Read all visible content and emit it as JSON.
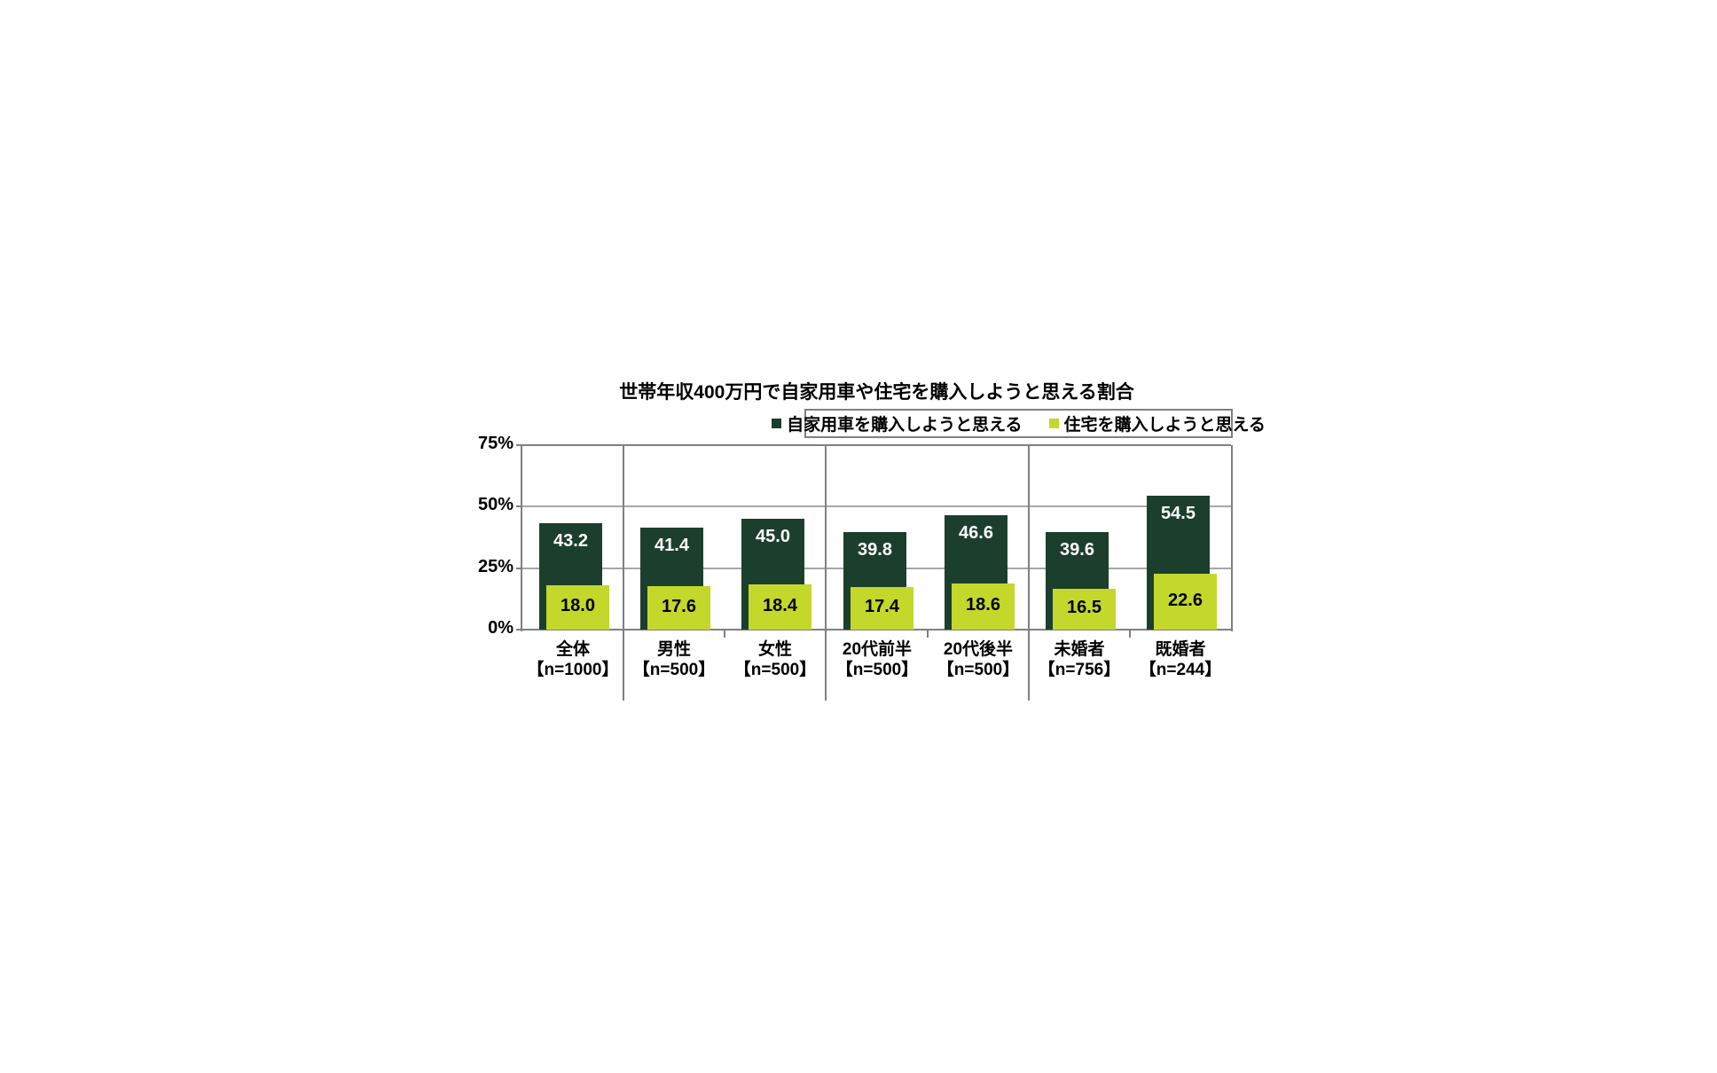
{
  "title": "世帯年収400万円で自家用車や住宅を購入しようと思える割合",
  "legend": {
    "series1_label": "自家用車を購入しようと思える",
    "series2_label": "住宅を購入しようと思える"
  },
  "colors": {
    "car_series": "#1c3f2d",
    "house_series": "#c3d82b",
    "gridline": "#a6a6a6",
    "frame": "#808080",
    "value_label_on_dark": "#ffffff",
    "value_label_on_light": "#000000"
  },
  "y_axis": {
    "tick_labels": [
      "75%",
      "50%",
      "25%",
      "0%"
    ]
  },
  "chart_data": {
    "type": "bar",
    "title": "世帯年収400万円で自家用車や住宅を購入しようと思える割合",
    "categories": [
      "全体",
      "男性",
      "女性",
      "20代前半",
      "20代後半",
      "未婚者",
      "既婚者"
    ],
    "category_sublabels": [
      "【n=1000】",
      "【n=500】",
      "【n=500】",
      "【n=500】",
      "【n=500】",
      "【n=756】",
      "【n=244】"
    ],
    "series": [
      {
        "name": "自家用車を購入しようと思える",
        "color": "#1c3f2d",
        "values": [
          43.2,
          41.4,
          45.0,
          39.8,
          46.6,
          39.6,
          54.5
        ]
      },
      {
        "name": "住宅を購入しようと思える",
        "color": "#c3d82b",
        "values": [
          18.0,
          17.6,
          18.4,
          17.4,
          18.6,
          16.5,
          22.6
        ]
      }
    ],
    "ylim": [
      0,
      75
    ],
    "yticks": [
      0,
      25,
      50,
      75
    ],
    "ytick_labels": [
      "0%",
      "25%",
      "50%",
      "75%"
    ],
    "grid": true,
    "legend_position": "top",
    "bar_style": "overlapped",
    "group_separators_after_category_index": [
      0,
      2,
      4
    ],
    "minor_ticks_after_category_index": [
      1,
      3,
      5
    ]
  }
}
